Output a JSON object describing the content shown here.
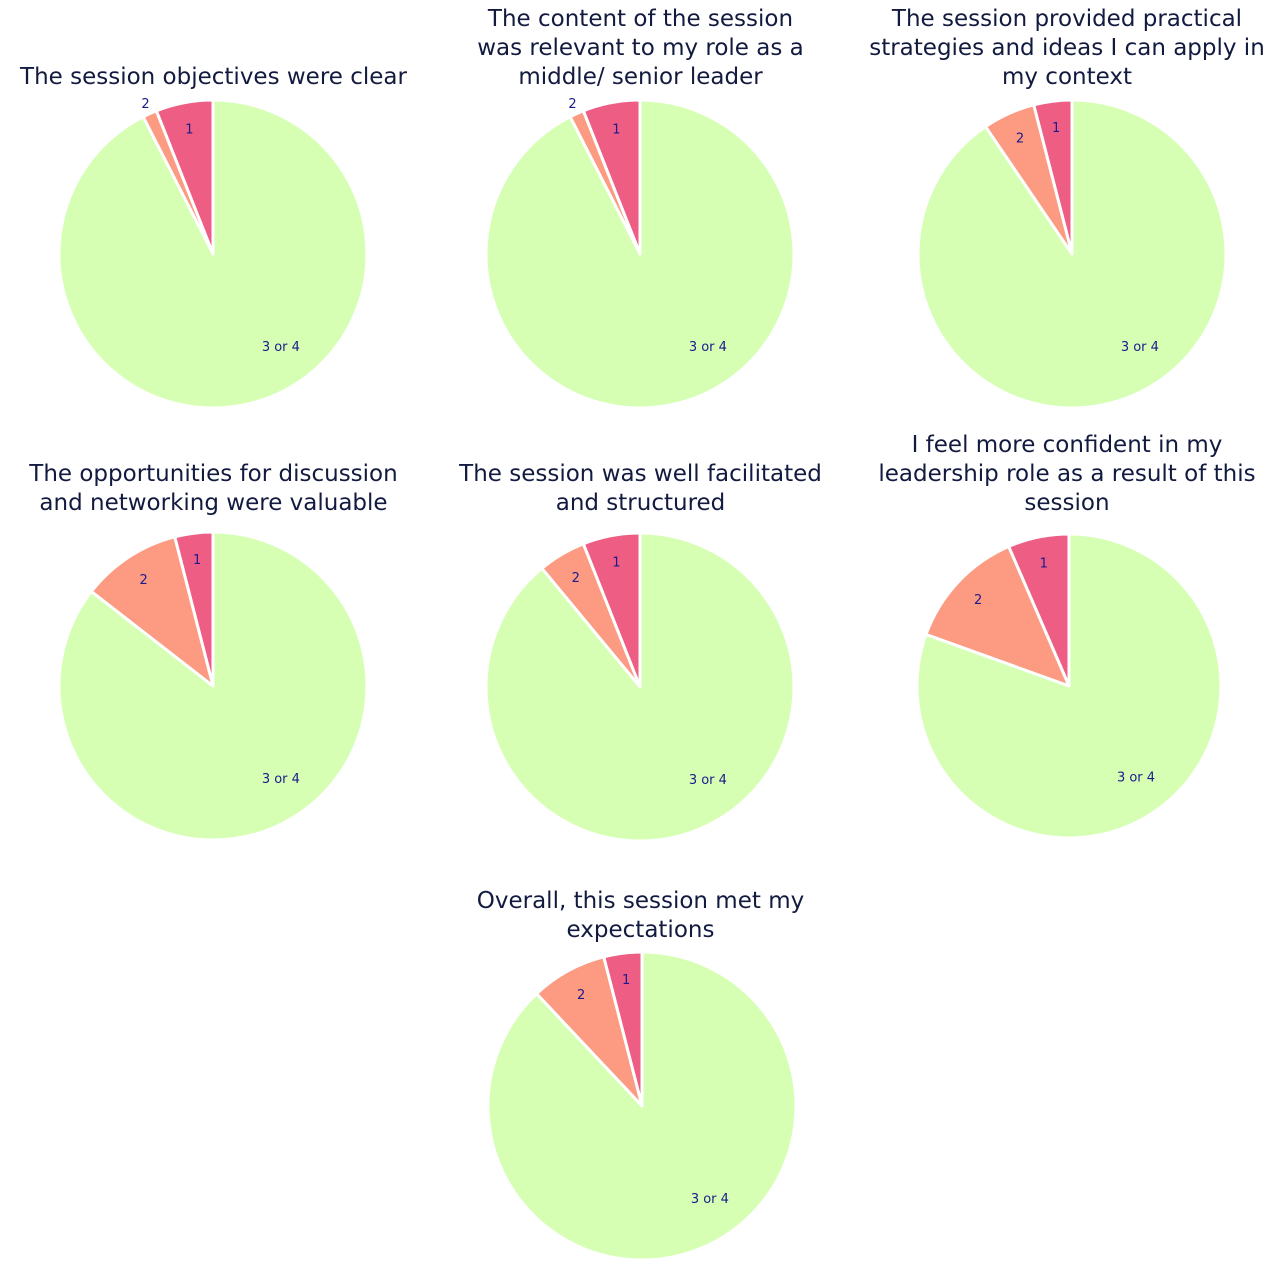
{
  "colors": {
    "low": "#ee5e84",
    "mid": "#fc9b82",
    "high": "#d6ffb4",
    "title": "#121a3f",
    "label": "#1a1a8c"
  },
  "chart_data": [
    {
      "type": "pie",
      "title": "The session objectives were clear",
      "categories": [
        "1",
        "2",
        "3 or 4"
      ],
      "values": [
        6,
        1.5,
        92.5
      ]
    },
    {
      "type": "pie",
      "title": "The content of the session was relevant to my role as a middle/ senior leader",
      "categories": [
        "1",
        "2",
        "3 or 4"
      ],
      "values": [
        6,
        1.5,
        92.5
      ]
    },
    {
      "type": "pie",
      "title": "The session provided practical strategies and ideas I can apply in my context",
      "categories": [
        "1",
        "2",
        "3 or 4"
      ],
      "values": [
        4,
        5.5,
        90.5
      ]
    },
    {
      "type": "pie",
      "title": "The opportunities for discussion and networking were valuable",
      "categories": [
        "1",
        "2",
        "3 or 4"
      ],
      "values": [
        4,
        10.5,
        85.5
      ]
    },
    {
      "type": "pie",
      "title": "The session was well facilitated and structured",
      "categories": [
        "1",
        "2",
        "3 or 4"
      ],
      "values": [
        6,
        5,
        89
      ]
    },
    {
      "type": "pie",
      "title": "I feel more confident in my leadership role as a result of this session",
      "categories": [
        "1",
        "2",
        "3 or 4"
      ],
      "values": [
        6.5,
        13,
        80.5
      ]
    },
    {
      "type": "pie",
      "title": "Overall, this session met my expectations",
      "categories": [
        "1",
        "2",
        "3 or 4"
      ],
      "values": [
        4,
        8,
        88
      ]
    }
  ]
}
